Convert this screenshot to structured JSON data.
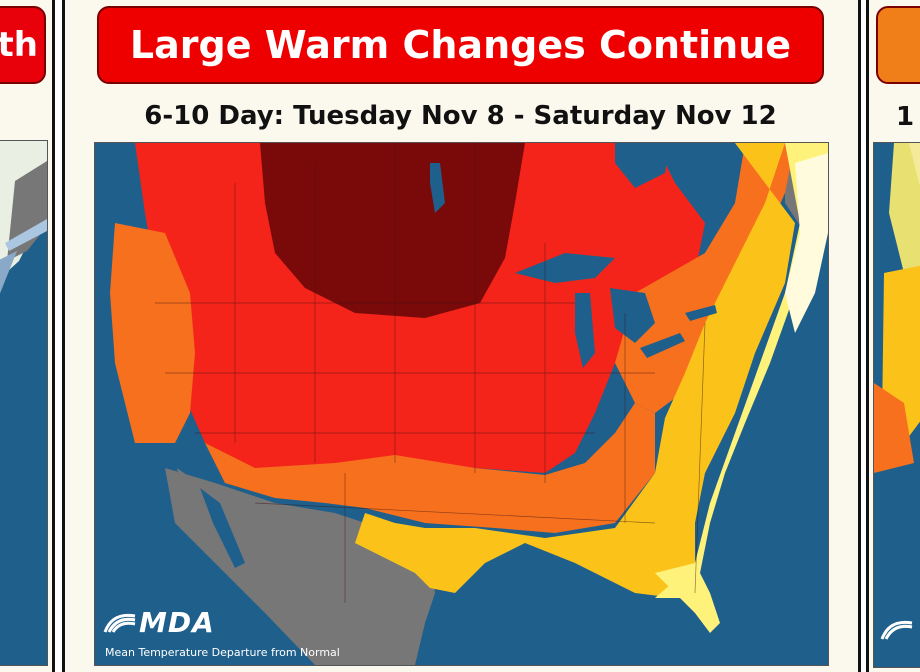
{
  "panels": {
    "left": {
      "title_fragment": "th",
      "title_color": "#e8000b"
    },
    "center": {
      "title": "Large Warm Changes Continue",
      "title_color": "#ee0000",
      "subtitle": "6-10 Day: Tuesday Nov 8 - Saturday Nov 12"
    },
    "right": {
      "subtitle_fragment": "1",
      "title_color": "#f07f1a"
    }
  },
  "map": {
    "logo": "MDA",
    "caption": "Mean Temperature Departure from Normal",
    "colors": {
      "water": "#1f5f8b",
      "outside": "#777777",
      "very_much_above": "#7a0a0a",
      "much_above": "#f5241a",
      "above": "#f6701e",
      "slightly_above": "#fbc31a",
      "near_normal_warm": "#fff27a",
      "near_normal": "#fffbdc"
    }
  }
}
